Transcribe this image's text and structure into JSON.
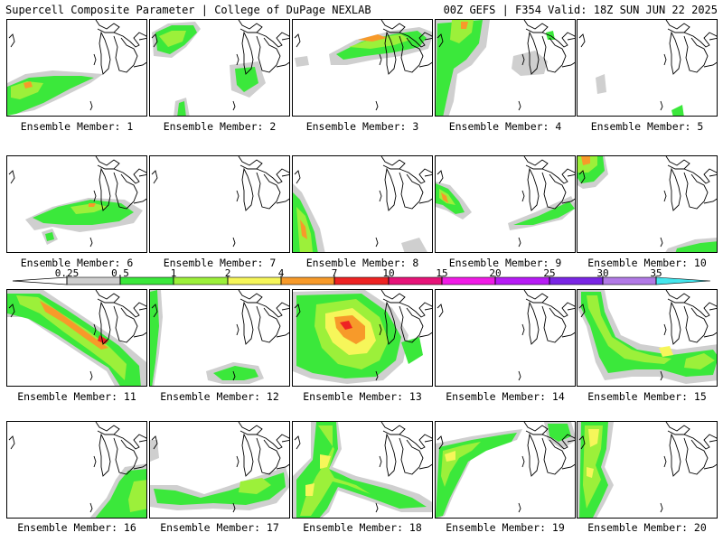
{
  "header": {
    "left": "Supercell Composite Parameter | College of DuPage NEXLAB",
    "right": "00Z GEFS | F354 Valid: 18Z SUN JUN 22 2025"
  },
  "colorbar": {
    "levels": [
      "0.25",
      "0.5",
      "1",
      "2",
      "4",
      "7",
      "10",
      "15",
      "20",
      "25",
      "30",
      "35"
    ],
    "colors": [
      "#cfcfcf",
      "#3be83b",
      "#9cf03a",
      "#f6f65a",
      "#f79a2a",
      "#ee2323",
      "#e61479",
      "#f01ce6",
      "#b71cf5",
      "#7a26e4",
      "#b27ae6",
      "#45e6ee"
    ]
  },
  "panels": [
    {
      "label": "Ensemble Member: 1"
    },
    {
      "label": "Ensemble Member: 2"
    },
    {
      "label": "Ensemble Member: 3"
    },
    {
      "label": "Ensemble Member: 4"
    },
    {
      "label": "Ensemble Member: 5"
    },
    {
      "label": "Ensemble Member: 6"
    },
    {
      "label": "Ensemble Member: 7"
    },
    {
      "label": "Ensemble Member: 8"
    },
    {
      "label": "Ensemble Member: 9"
    },
    {
      "label": "Ensemble Member: 10"
    },
    {
      "label": "Ensemble Member: 11"
    },
    {
      "label": "Ensemble Member: 12"
    },
    {
      "label": "Ensemble Member: 13"
    },
    {
      "label": "Ensemble Member: 14"
    },
    {
      "label": "Ensemble Member: 15"
    },
    {
      "label": "Ensemble Member: 16"
    },
    {
      "label": "Ensemble Member: 17"
    },
    {
      "label": "Ensemble Member: 18"
    },
    {
      "label": "Ensemble Member: 19"
    },
    {
      "label": "Ensemble Member: 20"
    }
  ]
}
